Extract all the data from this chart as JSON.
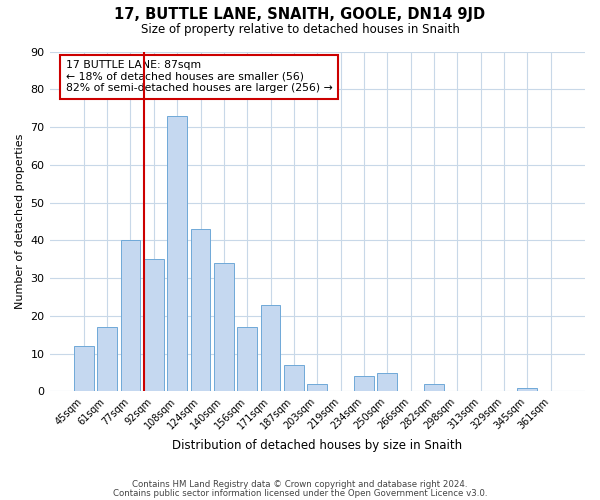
{
  "title": "17, BUTTLE LANE, SNAITH, GOOLE, DN14 9JD",
  "subtitle": "Size of property relative to detached houses in Snaith",
  "xlabel": "Distribution of detached houses by size in Snaith",
  "ylabel": "Number of detached properties",
  "bar_labels": [
    "45sqm",
    "61sqm",
    "77sqm",
    "92sqm",
    "108sqm",
    "124sqm",
    "140sqm",
    "156sqm",
    "171sqm",
    "187sqm",
    "203sqm",
    "219sqm",
    "234sqm",
    "250sqm",
    "266sqm",
    "282sqm",
    "298sqm",
    "313sqm",
    "329sqm",
    "345sqm",
    "361sqm"
  ],
  "bar_values": [
    12,
    17,
    40,
    35,
    73,
    43,
    34,
    17,
    23,
    7,
    2,
    0,
    4,
    5,
    0,
    2,
    0,
    0,
    0,
    1,
    0
  ],
  "bar_color": "#c5d8f0",
  "bar_edge_color": "#6fa8d8",
  "ylim": [
    0,
    90
  ],
  "yticks": [
    0,
    10,
    20,
    30,
    40,
    50,
    60,
    70,
    80,
    90
  ],
  "property_line_color": "#cc0000",
  "annotation_text": "17 BUTTLE LANE: 87sqm\n← 18% of detached houses are smaller (56)\n82% of semi-detached houses are larger (256) →",
  "annotation_box_color": "#ffffff",
  "annotation_box_edge_color": "#cc0000",
  "footer_line1": "Contains HM Land Registry data © Crown copyright and database right 2024.",
  "footer_line2": "Contains public sector information licensed under the Open Government Licence v3.0.",
  "background_color": "#ffffff",
  "grid_color": "#c8d8e8"
}
